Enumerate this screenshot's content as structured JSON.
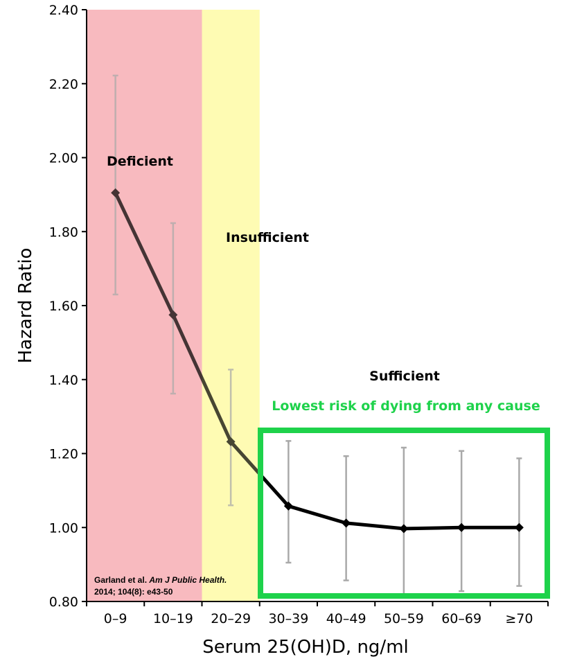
{
  "chart_data": {
    "type": "line",
    "categories": [
      "0–9",
      "10–19",
      "20–29",
      "30–39",
      "40–49",
      "50–59",
      "60–69",
      "≥70"
    ],
    "values": [
      1.905,
      1.575,
      1.232,
      1.058,
      1.012,
      0.997,
      1.0,
      1.0
    ],
    "error_low": [
      1.63,
      1.362,
      1.06,
      0.905,
      0.857,
      0.82,
      0.828,
      0.842
    ],
    "error_high": [
      2.222,
      1.823,
      1.427,
      1.234,
      1.193,
      1.216,
      1.207,
      1.187
    ],
    "ylim": [
      0.8,
      2.4
    ],
    "y_ticks": [
      "0.80",
      "1.00",
      "1.20",
      "1.40",
      "1.60",
      "1.80",
      "2.00",
      "2.20",
      "2.40"
    ],
    "xlabel": "Serum 25(OH)D, ng/ml",
    "ylabel": "Hazard Ratio",
    "grid": false,
    "zones": [
      {
        "label": "Deficient",
        "color": "#f9babf",
        "from": 0,
        "to": 2
      },
      {
        "label": "Insufficient",
        "color": "#fefbb3",
        "from": 2,
        "to": 3
      },
      {
        "label": "Sufficient",
        "color": "#ffffff",
        "from": 3,
        "to": 8
      }
    ],
    "callout": {
      "text": "Lowest risk of dying from any cause",
      "color": "#1ed24b"
    },
    "citation": {
      "authors": "Garland et al. ",
      "journal": "Am J Public Health.",
      "details": "2014; 104(8): e43-50"
    },
    "colors": {
      "line": "#000000",
      "error_bar": "#a9a9a9",
      "box": "#1ed24b"
    }
  }
}
